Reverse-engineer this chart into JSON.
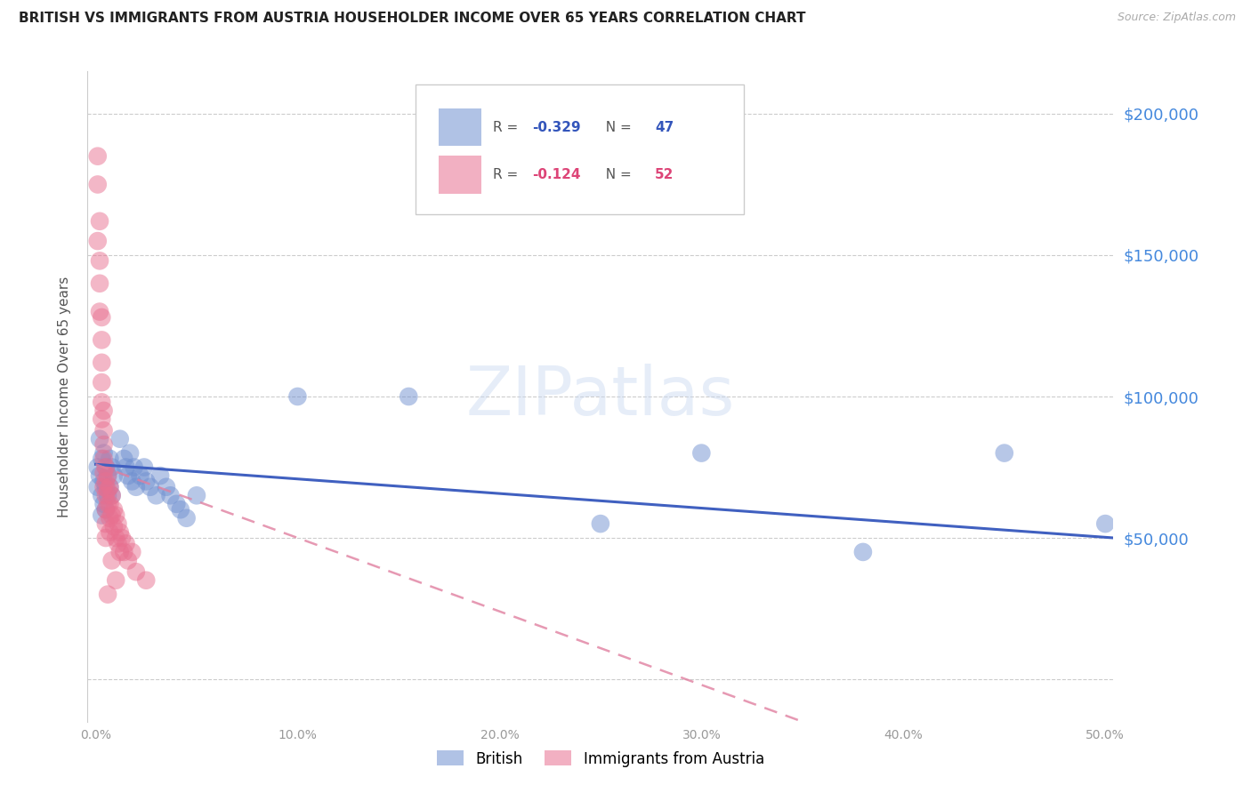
{
  "title": "BRITISH VS IMMIGRANTS FROM AUSTRIA HOUSEHOLDER INCOME OVER 65 YEARS CORRELATION CHART",
  "source": "Source: ZipAtlas.com",
  "ylabel": "Householder Income Over 65 years",
  "xlim": [
    -0.004,
    0.504
  ],
  "ylim": [
    -15000,
    215000
  ],
  "yticks": [
    0,
    50000,
    100000,
    150000,
    200000
  ],
  "ytick_labels": [
    "",
    "$50,000",
    "$100,000",
    "$150,000",
    "$200,000"
  ],
  "xticks": [
    0.0,
    0.1,
    0.2,
    0.3,
    0.4,
    0.5
  ],
  "xtick_labels": [
    "0.0%",
    "10.0%",
    "20.0%",
    "30.0%",
    "40.0%",
    "50.0%"
  ],
  "background_color": "#ffffff",
  "grid_color": "#cccccc",
  "watermark": "ZIPatlas",
  "british_color": "#7090d0",
  "austria_color": "#e87090",
  "british_line_color": "#4060c0",
  "austria_line_color": "#e080a0",
  "brit_line_x0": 0.0,
  "brit_line_y0": 76000,
  "brit_line_x1": 0.504,
  "brit_line_y1": 50000,
  "aus_line_x0": 0.0,
  "aus_line_y0": 76000,
  "aus_line_x1": 0.35,
  "aus_line_y1": -15000,
  "british_R": "-0.329",
  "british_N": "47",
  "austria_R": "-0.124",
  "austria_N": "52",
  "british_points": [
    [
      0.001,
      75000
    ],
    [
      0.001,
      68000
    ],
    [
      0.002,
      85000
    ],
    [
      0.002,
      72000
    ],
    [
      0.003,
      78000
    ],
    [
      0.003,
      65000
    ],
    [
      0.003,
      58000
    ],
    [
      0.004,
      80000
    ],
    [
      0.004,
      70000
    ],
    [
      0.004,
      62000
    ],
    [
      0.005,
      75000
    ],
    [
      0.005,
      68000
    ],
    [
      0.005,
      60000
    ],
    [
      0.006,
      72000
    ],
    [
      0.006,
      65000
    ],
    [
      0.007,
      78000
    ],
    [
      0.007,
      68000
    ],
    [
      0.008,
      75000
    ],
    [
      0.008,
      65000
    ],
    [
      0.009,
      72000
    ],
    [
      0.012,
      85000
    ],
    [
      0.014,
      78000
    ],
    [
      0.015,
      75000
    ],
    [
      0.016,
      72000
    ],
    [
      0.017,
      80000
    ],
    [
      0.018,
      70000
    ],
    [
      0.019,
      75000
    ],
    [
      0.02,
      68000
    ],
    [
      0.022,
      72000
    ],
    [
      0.024,
      75000
    ],
    [
      0.025,
      70000
    ],
    [
      0.027,
      68000
    ],
    [
      0.03,
      65000
    ],
    [
      0.032,
      72000
    ],
    [
      0.035,
      68000
    ],
    [
      0.037,
      65000
    ],
    [
      0.04,
      62000
    ],
    [
      0.042,
      60000
    ],
    [
      0.045,
      57000
    ],
    [
      0.05,
      65000
    ],
    [
      0.1,
      100000
    ],
    [
      0.155,
      100000
    ],
    [
      0.3,
      80000
    ],
    [
      0.45,
      80000
    ],
    [
      0.25,
      55000
    ],
    [
      0.5,
      55000
    ],
    [
      0.38,
      45000
    ]
  ],
  "austria_points": [
    [
      0.001,
      185000
    ],
    [
      0.001,
      175000
    ],
    [
      0.002,
      162000
    ],
    [
      0.002,
      148000
    ],
    [
      0.002,
      140000
    ],
    [
      0.003,
      128000
    ],
    [
      0.003,
      120000
    ],
    [
      0.003,
      112000
    ],
    [
      0.003,
      105000
    ],
    [
      0.003,
      98000
    ],
    [
      0.004,
      95000
    ],
    [
      0.004,
      88000
    ],
    [
      0.004,
      83000
    ],
    [
      0.004,
      78000
    ],
    [
      0.004,
      73000
    ],
    [
      0.005,
      75000
    ],
    [
      0.005,
      70000
    ],
    [
      0.005,
      65000
    ],
    [
      0.005,
      60000
    ],
    [
      0.005,
      55000
    ],
    [
      0.006,
      72000
    ],
    [
      0.006,
      67000
    ],
    [
      0.006,
      62000
    ],
    [
      0.007,
      68000
    ],
    [
      0.007,
      62000
    ],
    [
      0.007,
      57000
    ],
    [
      0.008,
      65000
    ],
    [
      0.008,
      58000
    ],
    [
      0.009,
      60000
    ],
    [
      0.009,
      54000
    ],
    [
      0.01,
      58000
    ],
    [
      0.01,
      50000
    ],
    [
      0.011,
      55000
    ],
    [
      0.011,
      48000
    ],
    [
      0.012,
      52000
    ],
    [
      0.012,
      45000
    ],
    [
      0.013,
      50000
    ],
    [
      0.014,
      45000
    ],
    [
      0.015,
      48000
    ],
    [
      0.016,
      42000
    ],
    [
      0.018,
      45000
    ],
    [
      0.02,
      38000
    ],
    [
      0.025,
      35000
    ],
    [
      0.006,
      30000
    ],
    [
      0.001,
      155000
    ],
    [
      0.002,
      130000
    ],
    [
      0.003,
      92000
    ],
    [
      0.004,
      68000
    ],
    [
      0.005,
      50000
    ],
    [
      0.007,
      52000
    ],
    [
      0.008,
      42000
    ],
    [
      0.01,
      35000
    ]
  ]
}
